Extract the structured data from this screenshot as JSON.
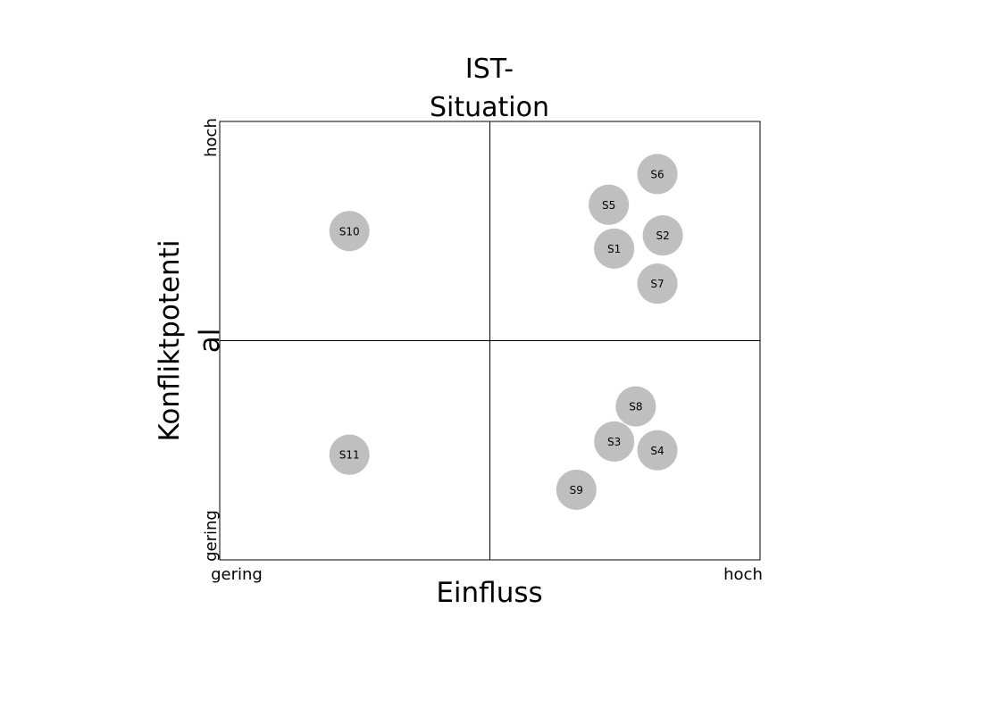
{
  "chart_data": {
    "type": "scatter",
    "title_lines": [
      "IST-",
      "Situation"
    ],
    "xlabel": "Einfluss",
    "ylabel_lines": [
      "Konfliktpotenti",
      "al"
    ],
    "xlim": [
      0,
      10
    ],
    "ylim": [
      0,
      10
    ],
    "x_tick_labels": [
      "gering",
      "hoch"
    ],
    "y_tick_labels": [
      "gering",
      "hoch"
    ],
    "quadrant_dividers": {
      "x": 5,
      "y": 5
    },
    "grid": false,
    "marker_color": "#bfbfbf",
    "points": [
      {
        "label": "S1",
        "x": 7.3,
        "y": 7.1
      },
      {
        "label": "S2",
        "x": 8.2,
        "y": 7.4
      },
      {
        "label": "S3",
        "x": 7.3,
        "y": 2.7
      },
      {
        "label": "S4",
        "x": 8.1,
        "y": 2.5
      },
      {
        "label": "S5",
        "x": 7.2,
        "y": 8.1
      },
      {
        "label": "S6",
        "x": 8.1,
        "y": 8.8
      },
      {
        "label": "S7",
        "x": 8.1,
        "y": 6.3
      },
      {
        "label": "S8",
        "x": 7.7,
        "y": 3.5
      },
      {
        "label": "S9",
        "x": 6.6,
        "y": 1.6
      },
      {
        "label": "S10",
        "x": 2.4,
        "y": 7.5
      },
      {
        "label": "S11",
        "x": 2.4,
        "y": 2.4
      }
    ]
  }
}
